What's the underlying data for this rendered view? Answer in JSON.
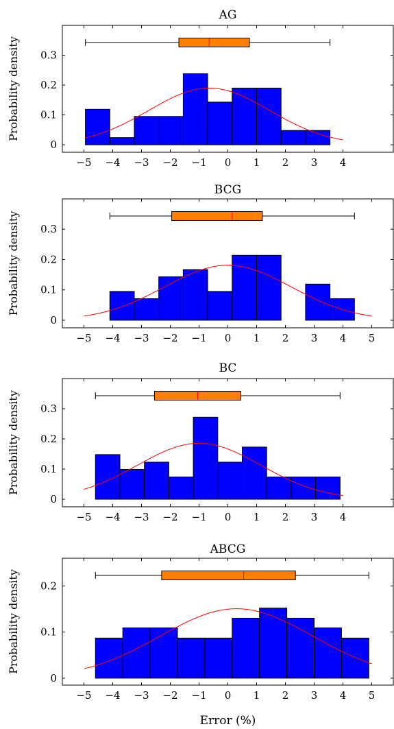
{
  "chart_data": [
    {
      "type": "bar",
      "title": "AG",
      "xlabel": "",
      "ylabel": "Probability density",
      "xlim": [
        -5.75,
        5.75
      ],
      "ylim": [
        -0.025,
        0.4
      ],
      "xticks": [
        "−5",
        "−4",
        "−3",
        "−2",
        "−1",
        "0",
        "1",
        "2",
        "3",
        "4"
      ],
      "yticks": [
        "0",
        "0.1",
        "0.2",
        "0.3"
      ],
      "bin_edges": [
        -4.95,
        -4.1,
        -3.25,
        -2.4,
        -1.55,
        -0.7,
        0.15,
        1.0,
        1.85,
        2.7,
        3.55
      ],
      "values": [
        0.119,
        0.024,
        0.095,
        0.095,
        0.238,
        0.143,
        0.19,
        0.19,
        0.048,
        0.048
      ],
      "boxplot": {
        "min": -4.95,
        "q1": -1.7,
        "median": -0.65,
        "q3": 0.75,
        "max": 3.55
      },
      "normal_fit": {
        "mean": -0.65,
        "std": 2.1,
        "x_range": [
          -4.95,
          4.0
        ]
      },
      "colors": {
        "bars": "#0000ff",
        "box": "#ff7f00",
        "fit": "#ff0000",
        "median": "#ff0000"
      }
    },
    {
      "type": "bar",
      "title": "BCG",
      "xlabel": "",
      "ylabel": "Probability density",
      "xlim": [
        -5.75,
        5.75
      ],
      "ylim": [
        -0.025,
        0.4
      ],
      "xticks": [
        "−5",
        "−4",
        "−3",
        "−2",
        "−1",
        "0",
        "1",
        "2",
        "3",
        "4",
        "5"
      ],
      "yticks": [
        "0",
        "0.1",
        "0.2",
        "0.3"
      ],
      "bin_edges": [
        -4.1,
        -3.25,
        -2.4,
        -1.55,
        -0.7,
        0.15,
        1.0,
        1.85,
        2.7,
        3.55,
        4.4
      ],
      "values": [
        0.095,
        0.071,
        0.143,
        0.167,
        0.095,
        0.214,
        0.214,
        0.0,
        0.119,
        0.071
      ],
      "boxplot": {
        "min": -4.1,
        "q1": -1.95,
        "median": 0.15,
        "q3": 1.2,
        "max": 4.4
      },
      "normal_fit": {
        "mean": 0.0,
        "std": 2.2,
        "x_range": [
          -5.0,
          5.0
        ]
      },
      "colors": {
        "bars": "#0000ff",
        "box": "#ff7f00",
        "fit": "#ff0000",
        "median": "#ff0000"
      }
    },
    {
      "type": "bar",
      "title": "BC",
      "xlabel": "",
      "ylabel": "Probability density",
      "xlim": [
        -5.75,
        5.75
      ],
      "ylim": [
        -0.025,
        0.4
      ],
      "xticks": [
        "−5",
        "−4",
        "−3",
        "−2",
        "−1",
        "0",
        "1",
        "2",
        "3",
        "4"
      ],
      "yticks": [
        "0",
        "0.1",
        "0.2",
        "0.3"
      ],
      "bin_edges": [
        -4.6,
        -3.75,
        -2.9,
        -2.05,
        -1.2,
        -0.35,
        0.5,
        1.35,
        2.2,
        3.05,
        3.9
      ],
      "values": [
        0.148,
        0.099,
        0.123,
        0.074,
        0.272,
        0.123,
        0.173,
        0.074,
        0.074,
        0.074
      ],
      "boxplot": {
        "min": -4.6,
        "q1": -2.55,
        "median": -1.05,
        "q3": 0.45,
        "max": 3.9
      },
      "normal_fit": {
        "mean": -1.0,
        "std": 2.15,
        "x_range": [
          -5.0,
          4.0
        ]
      },
      "colors": {
        "bars": "#0000ff",
        "box": "#ff7f00",
        "fit": "#ff0000",
        "median": "#ff0000"
      }
    },
    {
      "type": "bar",
      "title": "ABCG",
      "xlabel": "Error (%)",
      "ylabel": "Probability density",
      "xlim": [
        -5.75,
        5.75
      ],
      "ylim": [
        -0.015,
        0.26
      ],
      "xticks": [
        "−5",
        "−4",
        "−3",
        "−2",
        "−1",
        "0",
        "1",
        "2",
        "3",
        "4",
        "5"
      ],
      "yticks": [
        "0",
        "0.1",
        "0.2"
      ],
      "bin_edges": [
        -4.6,
        -3.65,
        -2.7,
        -1.75,
        -0.8,
        0.15,
        1.1,
        2.05,
        3.0,
        3.95,
        4.9
      ],
      "values": [
        0.087,
        0.109,
        0.109,
        0.087,
        0.087,
        0.13,
        0.152,
        0.13,
        0.109,
        0.087
      ],
      "boxplot": {
        "min": -4.6,
        "q1": -2.3,
        "median": 0.55,
        "q3": 2.35,
        "max": 4.9
      },
      "normal_fit": {
        "mean": 0.3,
        "std": 2.65,
        "x_range": [
          -5.0,
          5.0
        ]
      },
      "colors": {
        "bars": "#0000ff",
        "box": "#ff7f00",
        "fit": "#ff0000",
        "median": "#ff0000"
      }
    }
  ]
}
